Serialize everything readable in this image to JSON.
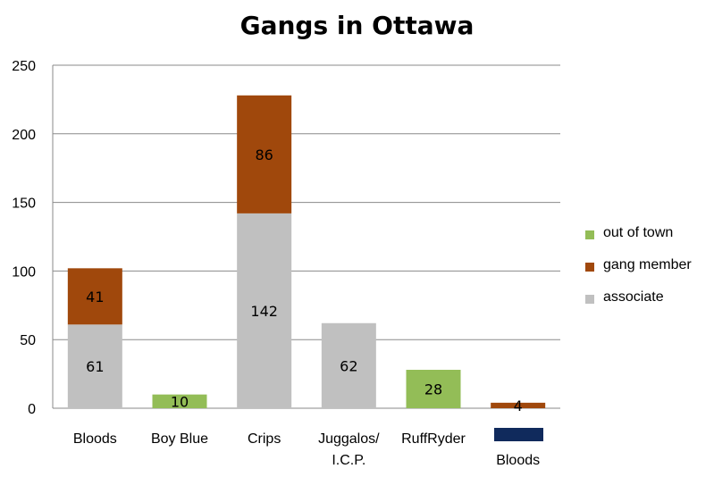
{
  "chart_data": {
    "type": "bar",
    "stacked": true,
    "title": "Gangs in Ottawa",
    "xlabel": "",
    "ylabel": "",
    "ylim": [
      0,
      250
    ],
    "yticks": [
      0,
      50,
      100,
      150,
      200,
      250
    ],
    "grid": true,
    "legend_position": "right",
    "categories": [
      [
        "Bloods"
      ],
      [
        "Boy Blue"
      ],
      [
        "Crips"
      ],
      [
        "Juggalos/",
        "I.C.P."
      ],
      [
        "RuffRyder"
      ],
      [
        "",
        "Bloods"
      ]
    ],
    "series": [
      {
        "name": "associate",
        "color": "#c0c0c0",
        "values": [
          61,
          0,
          142,
          62,
          0,
          0
        ]
      },
      {
        "name": "gang member",
        "color": "#a0480c",
        "values": [
          41,
          0,
          86,
          0,
          0,
          4
        ]
      },
      {
        "name": "out of town",
        "color": "#93bd57",
        "values": [
          0,
          10,
          0,
          0,
          28,
          0
        ]
      }
    ],
    "legend_order": [
      "out of town",
      "gang member",
      "associate"
    ]
  }
}
